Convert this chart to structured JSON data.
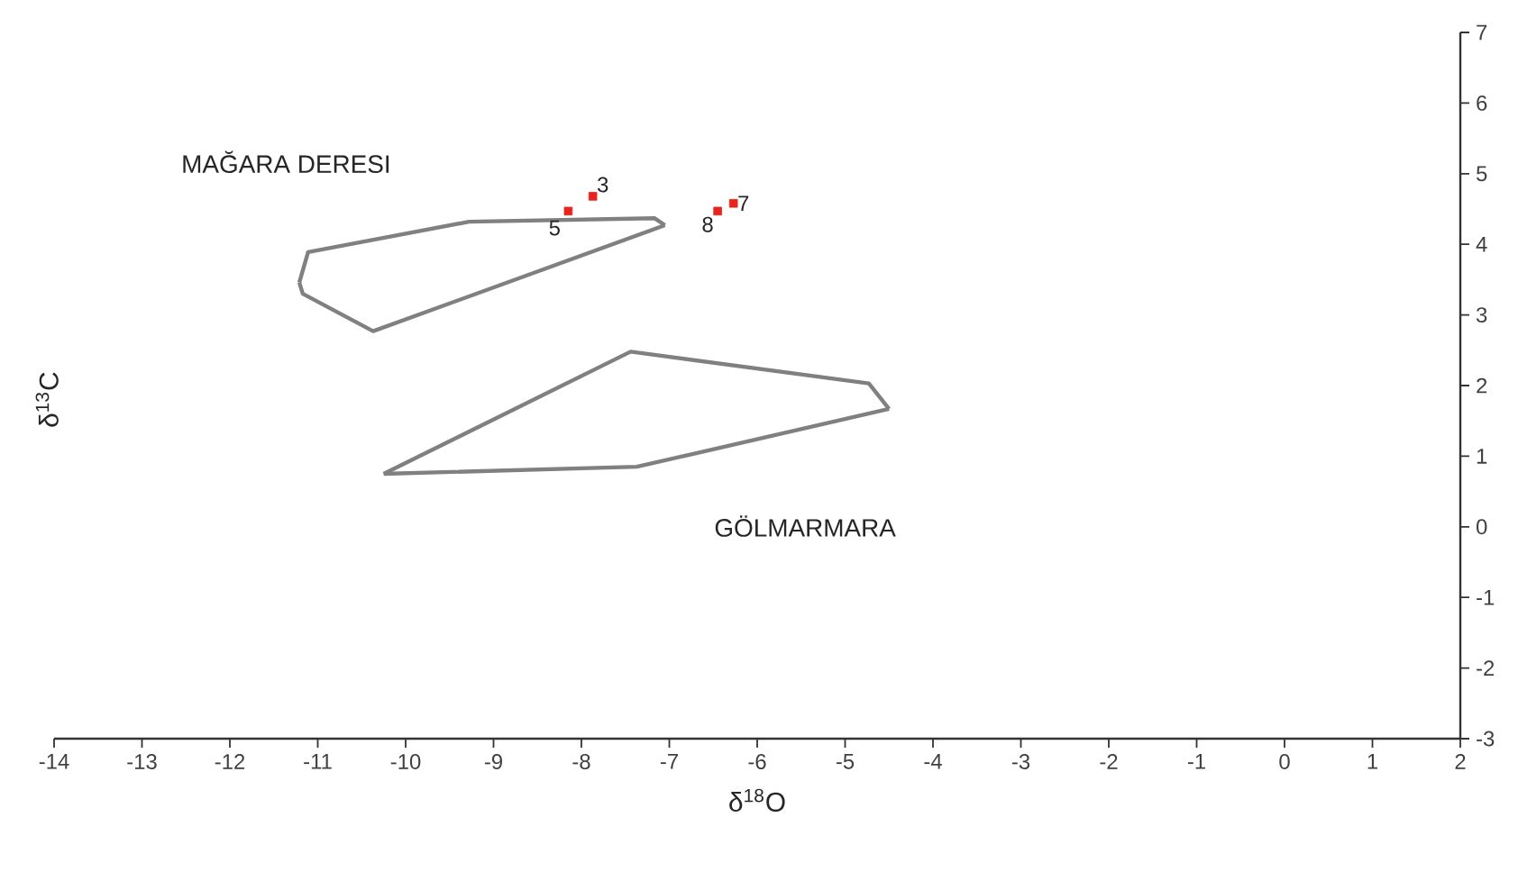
{
  "chart_data": {
    "type": "line",
    "xlabel": "δ$^{18}$O",
    "ylabel": "δ$^{13}$C",
    "xlim": [
      -14,
      2
    ],
    "ylim": [
      -3,
      7
    ],
    "xticks": [
      -14,
      -13,
      -12,
      -11,
      -10,
      -9,
      -8,
      -7,
      -6,
      -5,
      -4,
      -3,
      -2,
      -1,
      0,
      1,
      2
    ],
    "yticks": [
      -3,
      -2,
      -1,
      0,
      1,
      2,
      3,
      4,
      5,
      6,
      7
    ],
    "series": [
      {
        "name": "MAĞARA DERESI",
        "color": "#808080",
        "x": [
          -11.21,
          -11.11,
          -9.28,
          -7.17,
          -7.05
        ],
        "values": [
          3.46,
          3.89,
          4.32,
          4.37,
          4.27
        ]
      },
      {
        "color": "#808080",
        "x": [
          -11.21,
          -11.17,
          -10.37,
          -7.05
        ],
        "values": [
          3.46,
          3.3,
          2.77,
          4.27
        ]
      },
      {
        "color": "#808080",
        "x": [
          -10.25,
          -7.44,
          -4.73,
          -4.5
        ],
        "values": [
          0.75,
          2.48,
          2.03,
          1.67
        ]
      },
      {
        "name": "GÖLMARMARA",
        "color": "#808080",
        "x": [
          -10.25,
          -7.37,
          -4.5
        ],
        "values": [
          0.75,
          0.85,
          1.67
        ]
      },
      {
        "type": "scatter",
        "marker": "square",
        "color": "#e8251c",
        "x": [
          -8.15,
          -7.87,
          -6.45,
          -6.27
        ],
        "values": [
          4.47,
          4.68,
          4.47,
          4.58
        ]
      }
    ],
    "annotations": [
      {
        "text": "5",
        "x": -8.15,
        "y": 4.47
      },
      {
        "text": "3",
        "x": -7.87,
        "y": 4.68
      },
      {
        "text": "8",
        "x": -6.45,
        "y": 4.47
      },
      {
        "text": "7",
        "x": -6.27,
        "y": 4.58
      }
    ]
  }
}
